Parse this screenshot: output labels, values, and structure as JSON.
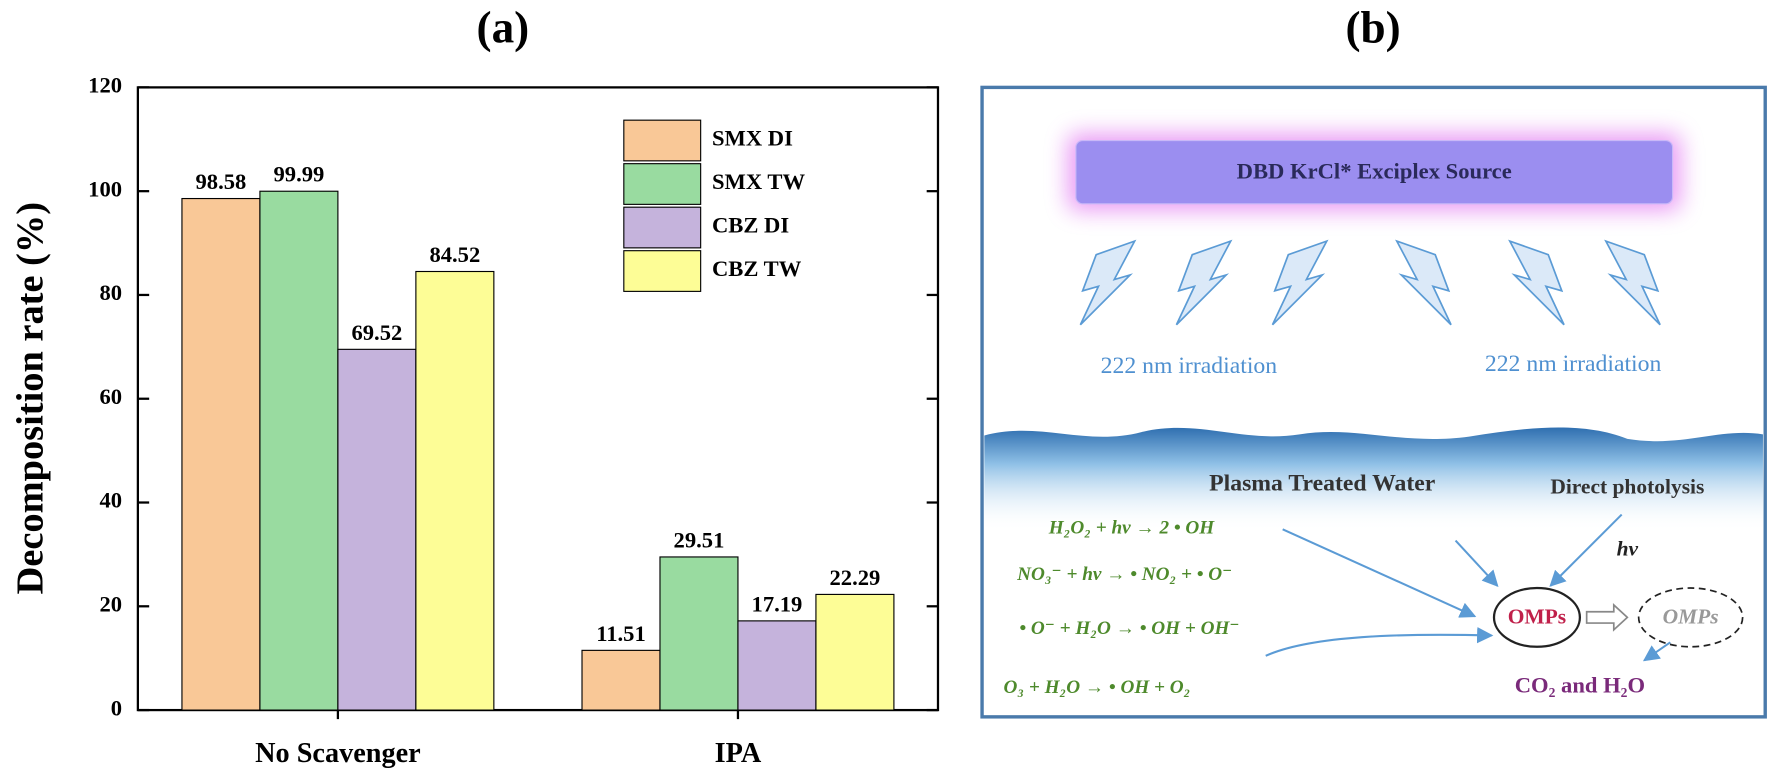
{
  "chart_data": {
    "type": "bar",
    "title": "(a)",
    "ylabel": "Decomposition rate (%)",
    "categories": [
      "No Scavenger",
      "IPA"
    ],
    "series": [
      {
        "name": "SMX DI",
        "color": "#f9c897",
        "values": [
          98.58,
          11.51
        ]
      },
      {
        "name": "SMX TW",
        "color": "#99dba0",
        "values": [
          99.99,
          29.51
        ]
      },
      {
        "name": "CBZ DI",
        "color": "#c5b3dc",
        "values": [
          69.52,
          17.19
        ]
      },
      {
        "name": "CBZ TW",
        "color": "#fdfd96",
        "values": [
          84.52,
          22.29
        ]
      }
    ],
    "ylim": [
      0,
      120
    ],
    "yticks": [
      0,
      20,
      40,
      60,
      80,
      100,
      120
    ],
    "grid": false,
    "legend": "upper right"
  },
  "diagram": {
    "title": "(b)",
    "source_label": "DBD KrCl* Exciplex Source",
    "irradiation_labels": [
      "222 nm irradiation",
      "222 nm irradiation"
    ],
    "plasma_label": "Plasma Treated Water",
    "photolysis_label": "Direct photolysis",
    "hv_label": "hv",
    "equations": [
      "H₂O₂ + hv → 2 • OH",
      "NO₃⁻ + hv → • NO₂ + • O⁻",
      "• O⁻ + H₂O → • OH + OH⁻",
      "O₃ + H₂O → • OH + O₂"
    ],
    "omps_label": "OMPs",
    "omps_product_label": "OMPs",
    "products_label": "CO₂ and H₂O"
  }
}
